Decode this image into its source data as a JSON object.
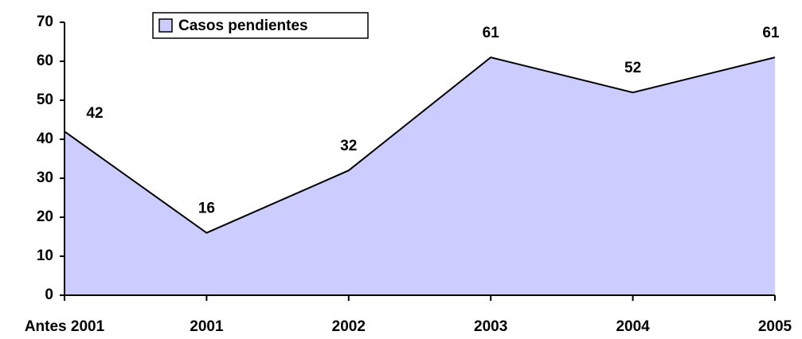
{
  "chart_data": {
    "type": "area",
    "categories": [
      "Antes 2001",
      "2001",
      "2002",
      "2003",
      "2004",
      "2005"
    ],
    "series": [
      {
        "name": "Casos pendientes",
        "color": "#ccccff",
        "values": [
          42,
          16,
          32,
          61,
          52,
          61
        ]
      }
    ],
    "ylim": [
      0,
      70
    ],
    "yticks": [
      0,
      10,
      20,
      30,
      40,
      50,
      60,
      70
    ],
    "grid": false,
    "legend": "top"
  }
}
